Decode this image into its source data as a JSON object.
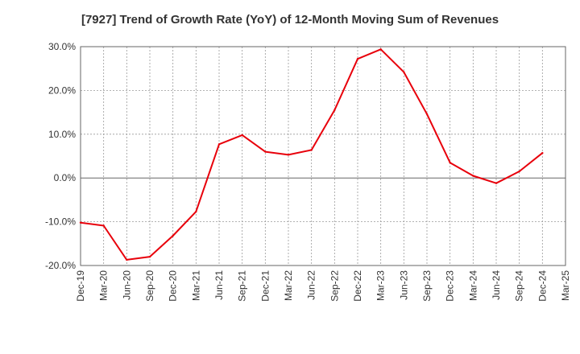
{
  "chart_data": {
    "type": "line",
    "title": "[7927]  Trend of Growth Rate (YoY) of 12-Month Moving Sum of Revenues",
    "x_tick_labels": [
      "Dec-19",
      "Mar-20",
      "Jun-20",
      "Sep-20",
      "Dec-20",
      "Mar-21",
      "Jun-21",
      "Sep-21",
      "Dec-21",
      "Mar-22",
      "Jun-22",
      "Sep-22",
      "Dec-22",
      "Mar-23",
      "Jun-23",
      "Sep-23",
      "Dec-23",
      "Mar-24",
      "Jun-24",
      "Sep-24",
      "Dec-24",
      "Mar-25"
    ],
    "y_tick_labels": [
      "30.0%",
      "20.0%",
      "10.0%",
      "0.0%",
      "-10.0%",
      "-20.0%"
    ],
    "ylim": [
      -20,
      30
    ],
    "y_unit": "%",
    "grid": true,
    "series": [
      {
        "color": "#e8000b",
        "x": [
          "Dec-19",
          "Mar-20",
          "Jun-20",
          "Sep-20",
          "Dec-20",
          "Mar-21",
          "Jun-21",
          "Sep-21",
          "Dec-21",
          "Mar-22",
          "Jun-22",
          "Sep-22",
          "Dec-22",
          "Mar-23",
          "Jun-23",
          "Sep-23",
          "Dec-23",
          "Mar-24",
          "Jun-24",
          "Sep-24",
          "Dec-24"
        ],
        "values": [
          -10.2,
          -10.9,
          -18.7,
          -18.0,
          -13.2,
          -7.7,
          7.7,
          9.8,
          6.0,
          5.3,
          6.4,
          15.5,
          27.2,
          29.4,
          24.2,
          14.6,
          3.5,
          0.5,
          -1.2,
          1.5,
          5.7
        ]
      }
    ]
  }
}
